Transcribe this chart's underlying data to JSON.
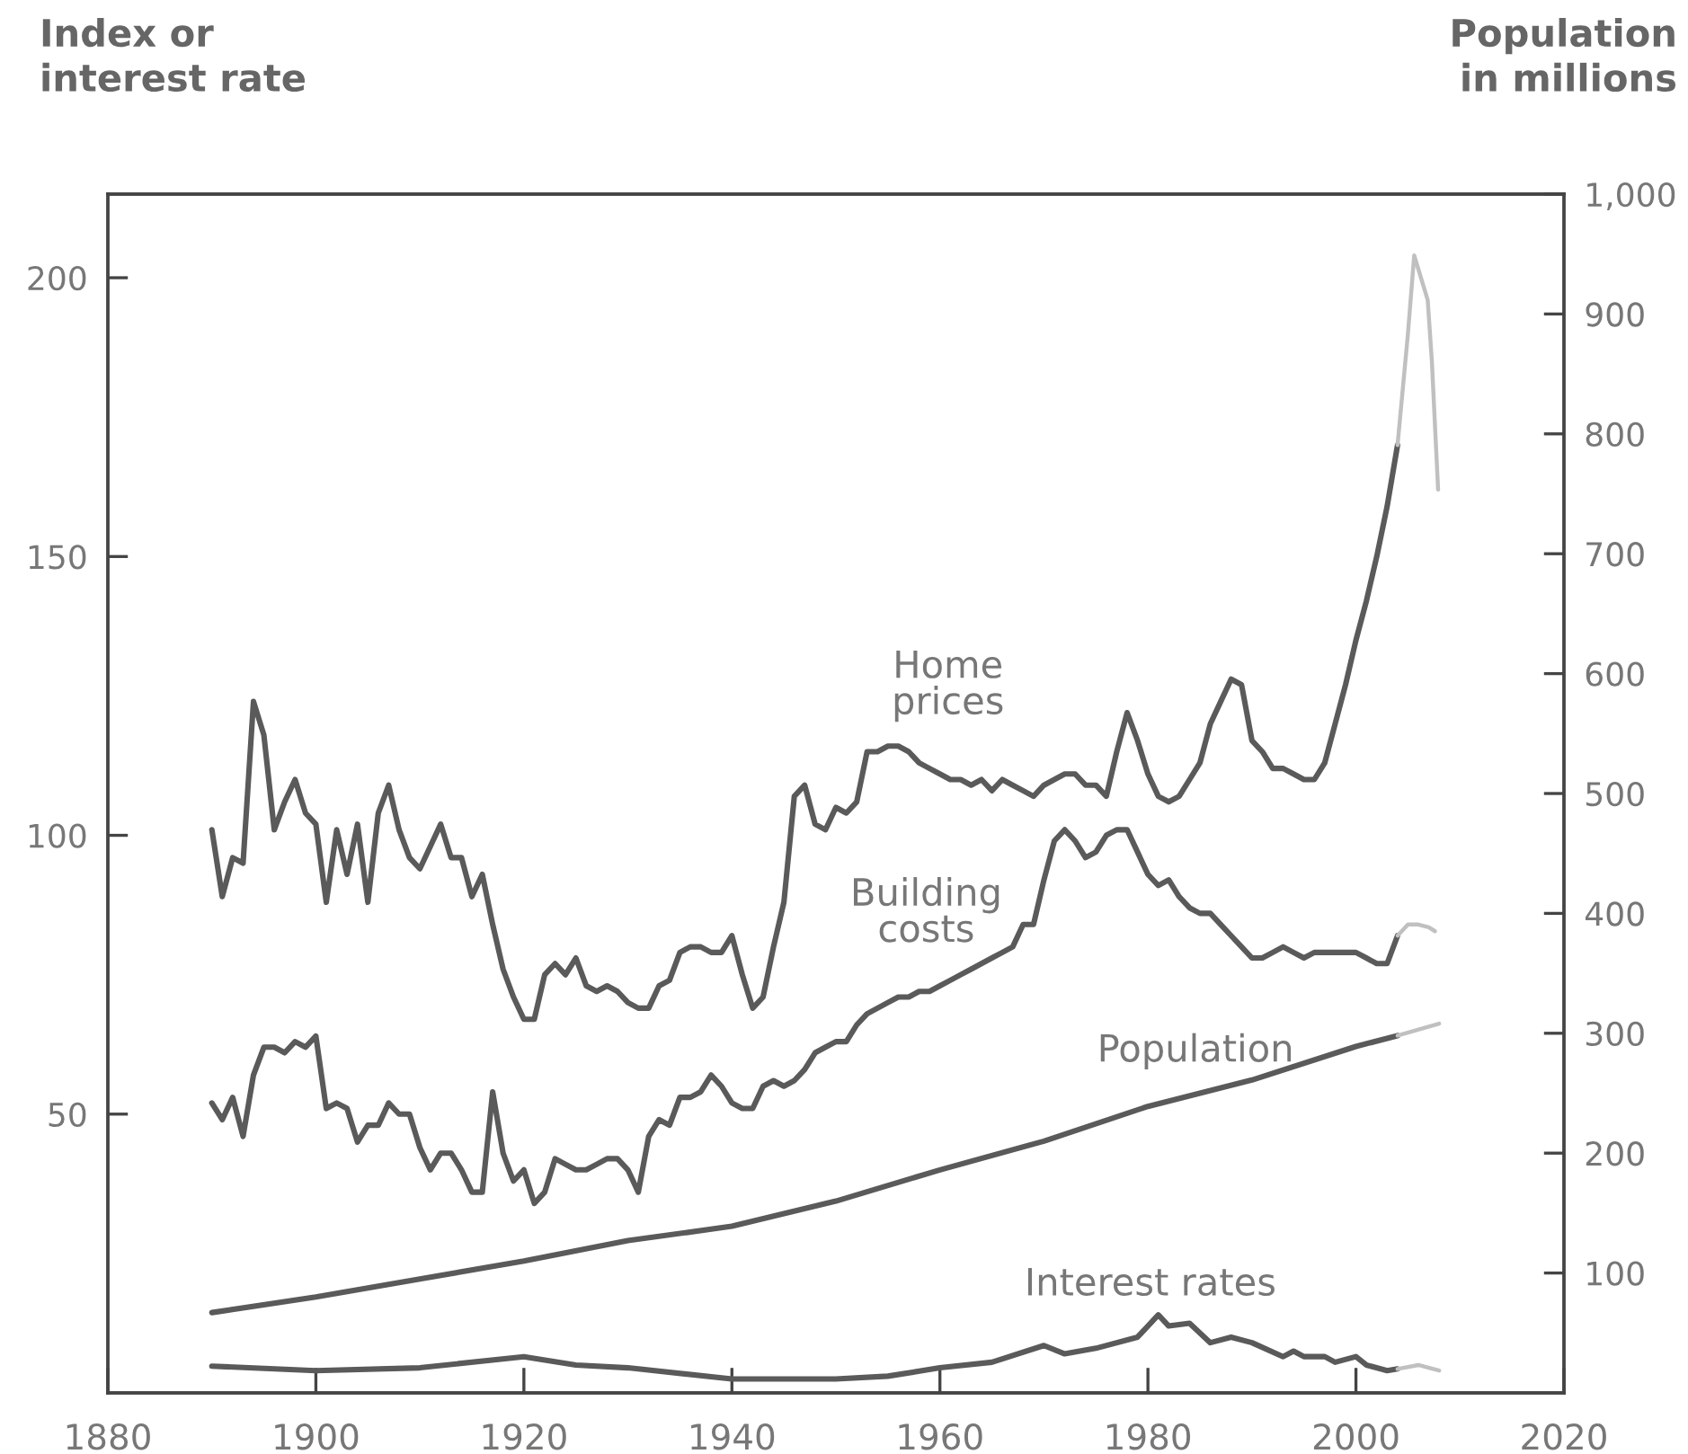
{
  "chart_data": {
    "type": "line",
    "ylabel": "Index or\ninterest rate",
    "y2label": "Population\nin millions",
    "xlim": [
      1880,
      2020
    ],
    "xticks": [
      1880,
      1900,
      1920,
      1940,
      1960,
      1980,
      2000,
      2020
    ],
    "ylim": [
      0,
      215
    ],
    "yticks": [
      50,
      100,
      150,
      200
    ],
    "y2lim": [
      0,
      1000
    ],
    "y2ticks": [
      100,
      200,
      300,
      400,
      500,
      600,
      700,
      800,
      900,
      {
        "value": 1000,
        "label": "1,000"
      }
    ],
    "grid": false,
    "legend": false,
    "marker": "none",
    "line_style": "solid",
    "series": [
      {
        "name": "Home\nprices",
        "color": "#5a5a5a",
        "x": [
          1890,
          1891,
          1892,
          1893,
          1894,
          1895,
          1896,
          1897,
          1898,
          1899,
          1900,
          1901,
          1902,
          1903,
          1904,
          1905,
          1906,
          1907,
          1908,
          1909,
          1910,
          1911,
          1912,
          1913,
          1914,
          1915,
          1916,
          1917,
          1918,
          1919,
          1920,
          1921,
          1922,
          1923,
          1924,
          1925,
          1926,
          1927,
          1928,
          1929,
          1930,
          1931,
          1932,
          1933,
          1934,
          1935,
          1936,
          1937,
          1938,
          1939,
          1940,
          1941,
          1942,
          1943,
          1944,
          1945,
          1946,
          1947,
          1948,
          1949,
          1950,
          1951,
          1952,
          1953,
          1954,
          1955,
          1956,
          1957,
          1958,
          1959,
          1960,
          1961,
          1962,
          1963,
          1964,
          1965,
          1966,
          1967,
          1968,
          1969,
          1970,
          1971,
          1972,
          1973,
          1974,
          1975,
          1976,
          1977,
          1978,
          1979,
          1980,
          1981,
          1982,
          1983,
          1984,
          1985,
          1986,
          1987,
          1988,
          1989,
          1990,
          1991,
          1992,
          1993,
          1994,
          1995,
          1996,
          1997,
          1998,
          1999,
          2000,
          2001,
          2002,
          2003,
          2004
        ],
        "values": [
          101,
          89,
          96,
          95,
          124,
          118,
          101,
          106,
          110,
          104,
          102,
          88,
          101,
          93,
          102,
          88,
          104,
          109,
          101,
          96,
          94,
          98,
          102,
          96,
          96,
          89,
          93,
          84,
          76,
          71,
          67,
          67,
          75,
          77,
          75,
          78,
          73,
          72,
          73,
          72,
          70,
          69,
          69,
          73,
          74,
          79,
          80,
          80,
          79,
          79,
          82,
          75,
          69,
          71,
          80,
          88,
          107,
          109,
          102,
          101,
          105,
          104,
          106,
          115,
          115,
          116,
          116,
          115,
          113,
          112,
          111,
          110,
          110,
          109,
          110,
          108,
          110,
          109,
          108,
          107,
          109,
          110,
          111,
          111,
          109,
          109,
          107,
          115,
          122,
          117,
          111,
          107,
          106,
          107,
          110,
          113,
          120,
          124,
          128,
          127,
          117,
          115,
          112,
          112,
          111,
          110,
          110,
          113,
          120,
          127,
          135,
          142,
          150,
          159,
          170
        ]
      },
      {
        "color": "#c0c0c0",
        "x": [
          2004,
          2005,
          2005.6,
          2006.9,
          2007.3,
          2007.9
        ],
        "values": [
          170,
          190,
          204,
          196,
          185,
          162
        ]
      },
      {
        "name": "Building\ncosts",
        "color": "#5a5a5a",
        "x": [
          1890,
          1891,
          1892,
          1893,
          1894,
          1895,
          1896,
          1897,
          1898,
          1899,
          1900,
          1901,
          1902,
          1903,
          1904,
          1905,
          1906,
          1907,
          1908,
          1909,
          1910,
          1911,
          1912,
          1913,
          1914,
          1915,
          1916,
          1917,
          1918,
          1919,
          1920,
          1921,
          1922,
          1923,
          1924,
          1925,
          1926,
          1927,
          1928,
          1929,
          1930,
          1931,
          1932,
          1933,
          1934,
          1935,
          1936,
          1937,
          1938,
          1939,
          1940,
          1941,
          1942,
          1943,
          1944,
          1945,
          1946,
          1947,
          1948,
          1949,
          1950,
          1951,
          1952,
          1953,
          1954,
          1955,
          1956,
          1957,
          1958,
          1959,
          1960,
          1961,
          1962,
          1963,
          1964,
          1965,
          1966,
          1967,
          1968,
          1969,
          1970,
          1971,
          1972,
          1973,
          1974,
          1975,
          1976,
          1977,
          1978,
          1979,
          1980,
          1981,
          1982,
          1983,
          1984,
          1985,
          1986,
          1987,
          1988,
          1989,
          1990,
          1991,
          1992,
          1993,
          1994,
          1995,
          1996,
          1997,
          1998,
          1999,
          2000,
          2001,
          2002,
          2003,
          2004
        ],
        "values": [
          52,
          49,
          53,
          46,
          57,
          62,
          62,
          61,
          63,
          62,
          64,
          51,
          52,
          51,
          45,
          48,
          48,
          52,
          50,
          50,
          44,
          40,
          43,
          43,
          40,
          36,
          36,
          54,
          43,
          38,
          40,
          34,
          36,
          42,
          41,
          40,
          40,
          41,
          42,
          42,
          40,
          36,
          46,
          49,
          48,
          53,
          53,
          54,
          57,
          55,
          52,
          51,
          51,
          55,
          56,
          55,
          56,
          58,
          61,
          62,
          63,
          63,
          66,
          68,
          69,
          70,
          71,
          71,
          72,
          72,
          73,
          74,
          75,
          76,
          77,
          78,
          79,
          80,
          84,
          84,
          92,
          99,
          101,
          99,
          96,
          97,
          100,
          101,
          101,
          97,
          93,
          91,
          92,
          89,
          87,
          86,
          86,
          84,
          82,
          80,
          78,
          78,
          79,
          80,
          79,
          78,
          79,
          79,
          79,
          79,
          79,
          78,
          77,
          77,
          82
        ]
      },
      {
        "color": "#c0c0c0",
        "x": [
          2004,
          2005,
          2006,
          2007,
          2007.6
        ],
        "values": [
          82,
          84,
          84,
          83.5,
          82.8
        ]
      },
      {
        "name": "Population",
        "color": "#5a5a5a",
        "axis": "y2",
        "x": [
          1890,
          1900,
          1910,
          1920,
          1930,
          1940,
          1950,
          1960,
          1970,
          1980,
          1990,
          2000,
          2004
        ],
        "values": [
          67,
          80,
          95,
          110,
          127,
          139,
          160,
          186,
          210,
          239,
          261,
          289,
          298
        ]
      },
      {
        "color": "#c0c0c0",
        "axis": "y2",
        "x": [
          2004,
          2008
        ],
        "values": [
          298,
          308
        ]
      },
      {
        "name": "Interest rates",
        "color": "#5a5a5a",
        "x": [
          1890,
          1900,
          1910,
          1920,
          1925,
          1930,
          1940,
          1945,
          1950,
          1955,
          1960,
          1965,
          1970,
          1972,
          1975,
          1979,
          1981,
          1982,
          1984,
          1986,
          1988,
          1990,
          1993,
          1994,
          1995,
          1997,
          1998,
          2000,
          2001,
          2003,
          2004
        ],
        "values": [
          4.8,
          4.0,
          4.5,
          6.5,
          5,
          4.5,
          2.5,
          2.5,
          2.5,
          3,
          4.5,
          5.5,
          8.5,
          7,
          8,
          10,
          14,
          12,
          12.5,
          9,
          10,
          9,
          6.5,
          7.5,
          6.5,
          6.5,
          5.5,
          6.5,
          5,
          4,
          4.3
        ]
      },
      {
        "color": "#c0c0c0",
        "x": [
          2004,
          2006,
          2008
        ],
        "values": [
          4.3,
          5,
          4
        ]
      }
    ]
  }
}
